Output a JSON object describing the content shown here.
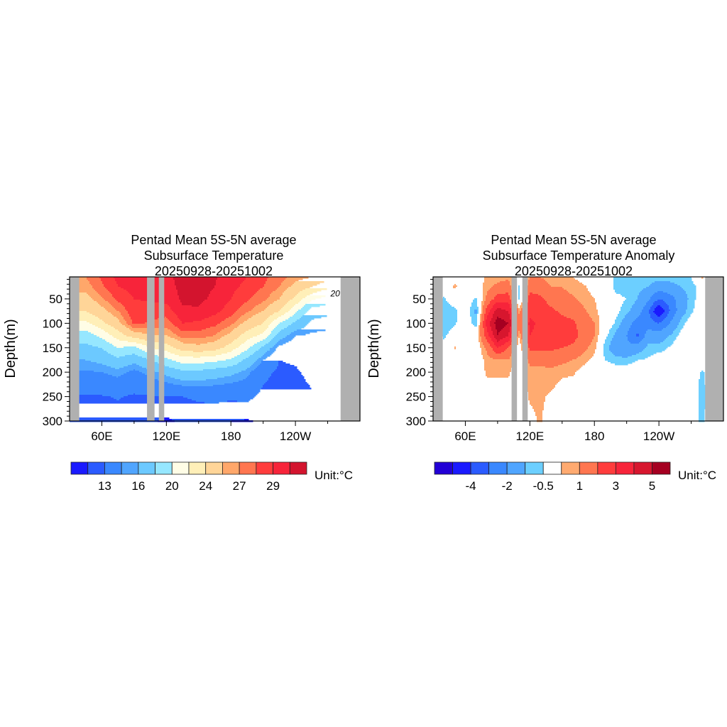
{
  "chart_data": [
    {
      "type": "heatmap",
      "title_lines": [
        "Pentad Mean 5S-5N average",
        "Subsurface Temperature",
        "20250928-20251002"
      ],
      "xlabel": "",
      "ylabel": "Depth(m)",
      "xlim": [
        30,
        300
      ],
      "ylim": [
        5,
        300
      ],
      "xticks": {
        "values": [
          60,
          120,
          180,
          240
        ],
        "labels": [
          "60E",
          "120E",
          "180",
          "120W"
        ],
        "minor": [
          90,
          150,
          210,
          270
        ]
      },
      "yticks": {
        "values": [
          50,
          100,
          150,
          200,
          250,
          300
        ],
        "labels": [
          "50",
          "100",
          "150",
          "200",
          "250",
          "300"
        ]
      },
      "land_mask_lon_ranges": [
        [
          30,
          39
        ],
        [
          102,
          109
        ],
        [
          113,
          118
        ],
        [
          282,
          300
        ]
      ],
      "contour_label": {
        "text": "20",
        "lon": 277,
        "depth": 45
      },
      "levels": [
        12,
        13,
        15,
        16,
        18,
        20,
        22,
        24,
        26,
        27,
        28,
        29,
        30
      ],
      "colors": [
        "#1a1aff",
        "#2b5bff",
        "#3a88ff",
        "#50a5ff",
        "#6cc9ff",
        "#96e7ff",
        "#fffde6",
        "#ffefb8",
        "#ffd598",
        "#ffa76a",
        "#ff7650",
        "#ff3c3c",
        "#f7243a",
        "#d3142e"
      ],
      "colorbar_labels": [
        "13",
        "16",
        "20",
        "24",
        "27",
        "29"
      ],
      "colorbar_label_boundaries": [
        2,
        4,
        6,
        8,
        10,
        12
      ],
      "unit_label": "Unit:°C",
      "grid": {
        "lon": [
          30,
          45,
          60,
          75,
          90,
          105,
          120,
          135,
          150,
          165,
          180,
          195,
          210,
          225,
          240,
          255,
          270,
          285,
          300
        ],
        "depth": [
          5,
          25,
          50,
          75,
          100,
          125,
          150,
          175,
          200,
          250,
          300
        ],
        "values": [
          [
            27,
            26.5,
            25.5,
            24,
            21.5,
            19,
            17.5,
            16,
            14.8,
            12.8,
            12.3
          ],
          [
            27,
            26.5,
            25.5,
            24,
            21.5,
            19,
            17.5,
            16,
            14.8,
            12.8,
            12.3
          ],
          [
            28.2,
            27.8,
            26.8,
            25.5,
            23.5,
            20.5,
            18,
            16.5,
            15,
            12.9,
            12.3
          ],
          [
            29.3,
            29,
            28.3,
            27,
            25.5,
            23,
            20,
            17.5,
            15.5,
            13.1,
            12.4
          ],
          [
            29.5,
            29.3,
            29,
            28.8,
            28.3,
            25,
            19.5,
            16.5,
            14.6,
            12.8,
            12.3
          ],
          [
            29.6,
            29.4,
            29.1,
            28.6,
            27.8,
            26,
            22,
            18,
            15.5,
            12.9,
            12.2
          ],
          [
            29.8,
            29.6,
            29.3,
            28.5,
            27.5,
            26,
            23,
            19.5,
            16.5,
            12.9,
            11.8
          ],
          [
            30.3,
            30.3,
            30.2,
            29.8,
            29,
            27.5,
            25,
            21,
            17.5,
            13,
            12.2
          ],
          [
            30.4,
            30.3,
            30.2,
            29.9,
            28.8,
            27.5,
            25.5,
            21,
            17.5,
            13.2,
            12.3
          ],
          [
            30.1,
            30,
            29.8,
            29.3,
            28.3,
            27,
            25,
            20.5,
            17,
            13.3,
            12.2
          ],
          [
            29.5,
            29.3,
            29,
            28.5,
            27.3,
            25.5,
            23,
            19.8,
            16.5,
            13.2,
            12
          ],
          [
            29,
            28.7,
            28.2,
            27.2,
            25.5,
            23,
            20.5,
            17.5,
            15.5,
            13.3,
            11.9
          ],
          [
            28.3,
            28,
            27.3,
            26,
            24,
            21.5,
            17.5,
            15,
            13.4,
            12.6,
            12.2
          ],
          [
            27.5,
            27,
            26,
            24,
            20,
            17,
            14.5,
            13,
            12.7,
            12.5,
            12.3
          ],
          [
            26.5,
            25.5,
            23.5,
            20.5,
            17.5,
            15,
            13.8,
            13.2,
            12.8,
            12.5,
            12.3
          ],
          [
            26,
            24,
            20.3,
            17,
            15.5,
            14.8,
            14.5,
            14,
            13.4,
            12.8,
            12.4
          ],
          [
            25,
            22.5,
            19,
            16.5,
            15.2,
            14.8,
            14.5,
            14.2,
            13.5,
            12.8,
            12.4
          ],
          [
            25,
            22.5,
            19,
            16.5,
            15.2,
            14.8,
            14.5,
            14.2,
            13.5,
            12.8,
            12.4
          ],
          [
            25,
            22.5,
            19,
            16.5,
            15.2,
            14.8,
            14.5,
            14.2,
            13.5,
            12.8,
            12.4
          ]
        ]
      }
    },
    {
      "type": "heatmap",
      "title_lines": [
        "Pentad Mean 5S-5N average",
        "Subsurface Temperature Anomaly",
        "20250928-20251002"
      ],
      "xlabel": "",
      "ylabel": "Depth(m)",
      "xlim": [
        30,
        300
      ],
      "ylim": [
        5,
        300
      ],
      "xticks": {
        "values": [
          60,
          120,
          180,
          240
        ],
        "labels": [
          "60E",
          "120E",
          "180",
          "120W"
        ],
        "minor": [
          90,
          150,
          210,
          270
        ]
      },
      "yticks": {
        "values": [
          50,
          100,
          150,
          200,
          250,
          300
        ],
        "labels": [
          "50",
          "100",
          "150",
          "200",
          "250",
          "300"
        ]
      },
      "land_mask_lon_ranges": [
        [
          30,
          39
        ],
        [
          103,
          108
        ],
        [
          113,
          118
        ],
        [
          283,
          300
        ]
      ],
      "levels": [
        -5,
        -4,
        -3,
        -2,
        -1,
        -0.5,
        0.5,
        1,
        2,
        3,
        4,
        5
      ],
      "colors": [
        "#2200d6",
        "#1a1aff",
        "#2b5bff",
        "#3a88ff",
        "#50a5ff",
        "#6ccfff",
        "#ffffff",
        "#ffaa70",
        "#ff7650",
        "#ff3c3c",
        "#f7243a",
        "#d7162e",
        "#a50021"
      ],
      "colorbar_labels": [
        "-4",
        "-2",
        "-0.5",
        "1",
        "3",
        "5"
      ],
      "colorbar_label_boundaries": [
        2,
        4,
        6,
        8,
        10,
        12
      ],
      "unit_label": "Unit:°C",
      "grid": {
        "lon": [
          30,
          40,
          50,
          60,
          70,
          80,
          90,
          100,
          110,
          120,
          130,
          140,
          150,
          160,
          170,
          180,
          190,
          200,
          210,
          220,
          230,
          240,
          250,
          260,
          270,
          280,
          290,
          300
        ],
        "depth": [
          5,
          25,
          50,
          75,
          100,
          125,
          150,
          175,
          200,
          250,
          300
        ],
        "values": [
          [
            0,
            0,
            0,
            0,
            0,
            0,
            0,
            0,
            0,
            0,
            0
          ],
          [
            0,
            0,
            -0.6,
            -0.8,
            -0.8,
            -0.6,
            -0.3,
            0,
            0,
            0,
            0
          ],
          [
            0.3,
            0.6,
            0,
            -0.7,
            -0.6,
            -0.2,
            0.6,
            0,
            0,
            0,
            0
          ],
          [
            0,
            0.2,
            0,
            0,
            0,
            0,
            0,
            0,
            0,
            0,
            0
          ],
          [
            0,
            0,
            -0.6,
            -1.2,
            -0.8,
            0,
            0,
            0,
            0,
            0,
            0
          ],
          [
            0.6,
            0.8,
            1.2,
            2.5,
            3.5,
            2.5,
            1.2,
            0.7,
            0.6,
            0.2,
            0
          ],
          [
            0.7,
            1.2,
            2.5,
            4.5,
            5.6,
            5,
            3,
            1,
            0.6,
            0.2,
            0
          ],
          [
            0.8,
            1.5,
            2.5,
            4,
            5,
            4,
            2,
            1,
            0.6,
            0.2,
            0
          ],
          [
            0,
            -0.6,
            -0.6,
            0.8,
            1.5,
            0.6,
            0,
            0,
            0,
            0,
            0
          ],
          [
            1,
            1.5,
            2.5,
            2.8,
            3.2,
            3,
            2.2,
            1.2,
            0.8,
            0.6,
            0.3
          ],
          [
            1,
            1.5,
            2.2,
            2.5,
            2.8,
            2.7,
            2.2,
            1.2,
            0.8,
            0.6,
            0.6
          ],
          [
            0.6,
            1,
            1.6,
            2.2,
            2.6,
            2.8,
            2.2,
            1.4,
            0.8,
            0.4,
            0
          ],
          [
            0.6,
            1,
            1.2,
            1.8,
            2.4,
            2.6,
            2,
            1.2,
            0.6,
            0.2,
            0
          ],
          [
            0.5,
            0.8,
            1.1,
            1.5,
            2.2,
            2.4,
            1.8,
            1,
            0.6,
            0,
            0
          ],
          [
            0.2,
            0.6,
            0.8,
            1.1,
            1.5,
            1.6,
            1.2,
            0.7,
            0.2,
            0,
            0
          ],
          [
            0,
            0.2,
            0.5,
            0.7,
            1,
            1,
            0.7,
            0.3,
            0,
            0,
            0
          ],
          [
            0,
            0,
            0,
            0,
            0,
            -0.3,
            -0.8,
            -0.5,
            0,
            0,
            0
          ],
          [
            -0.6,
            -0.7,
            -0.3,
            -0.3,
            -0.6,
            -1.2,
            -1.5,
            -0.8,
            0,
            0,
            0
          ],
          [
            -0.7,
            -0.8,
            -0.5,
            -0.8,
            -1.5,
            -2,
            -1.8,
            -0.8,
            0,
            0,
            0
          ],
          [
            -0.5,
            -0.8,
            -1,
            -1.5,
            -2.5,
            -3.2,
            -1.5,
            -0.5,
            0,
            0,
            0
          ],
          [
            -0.6,
            -1,
            -1.8,
            -2.8,
            -2.5,
            -1.5,
            -0.8,
            -0.4,
            0,
            0,
            0
          ],
          [
            -0.7,
            -1.5,
            -3,
            -5.2,
            -3,
            -1.5,
            -0.8,
            0,
            0,
            0,
            0
          ],
          [
            -0.7,
            -1.3,
            -2.5,
            -3,
            -2,
            -1,
            -0.4,
            0,
            0,
            0,
            0
          ],
          [
            -0.6,
            -1,
            -1.5,
            -1.5,
            -0.8,
            -0.3,
            0,
            0,
            0,
            0,
            0
          ],
          [
            -0.5,
            -0.7,
            -0.8,
            -0.6,
            0,
            0,
            0,
            0,
            0,
            0,
            -0.3
          ],
          [
            0.6,
            -0.3,
            0,
            0,
            0,
            0,
            0,
            0,
            -0.6,
            -0.8,
            -0.6
          ],
          [
            0,
            0,
            0,
            0,
            0,
            0,
            0,
            0,
            0,
            0,
            0
          ],
          [
            0,
            0,
            0,
            0,
            0,
            0,
            0,
            0,
            0,
            0,
            0
          ]
        ]
      }
    }
  ]
}
